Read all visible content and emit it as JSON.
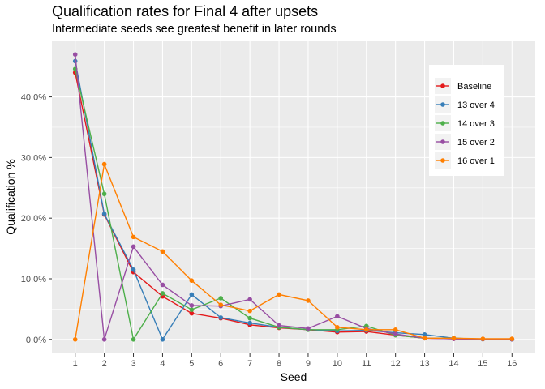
{
  "chart_data": {
    "type": "line",
    "title": "Qualification rates for Final 4 after upsets",
    "subtitle": "Intermediate seeds see greatest benefit in later rounds",
    "xlabel": "Seed",
    "ylabel": "Qualification %",
    "x": [
      1,
      2,
      3,
      4,
      5,
      6,
      7,
      8,
      9,
      10,
      11,
      12,
      13,
      14,
      15,
      16
    ],
    "x_ticks": [
      "1",
      "2",
      "3",
      "4",
      "5",
      "6",
      "7",
      "8",
      "9",
      "10",
      "11",
      "12",
      "13",
      "14",
      "15",
      "16"
    ],
    "y_ticks": [
      "0.0%",
      "10.0%",
      "20.0%",
      "30.0%",
      "40.0%"
    ],
    "y_tick_values": [
      0,
      10,
      20,
      30,
      40
    ],
    "ylim": [
      -2.3,
      49.3
    ],
    "xlim": [
      0.2,
      16.8
    ],
    "grid": true,
    "legend_position": "top-right",
    "series": [
      {
        "name": "Baseline",
        "color": "#e41a1c",
        "values": [
          44.0,
          20.6,
          11.1,
          7.1,
          4.3,
          3.5,
          2.4,
          1.9,
          1.6,
          1.2,
          1.3,
          0.7,
          0.2,
          0.1,
          0.05,
          0.02
        ]
      },
      {
        "name": "13 over 4",
        "color": "#377eb8",
        "values": [
          45.9,
          20.7,
          11.5,
          0.0,
          7.4,
          3.6,
          2.7,
          2.0,
          1.6,
          1.4,
          1.5,
          1.1,
          0.8,
          0.2,
          0.05,
          0.02
        ]
      },
      {
        "name": "14 over 3",
        "color": "#4daf4a",
        "values": [
          44.6,
          24.0,
          0.0,
          7.6,
          4.9,
          6.8,
          3.5,
          2.0,
          1.6,
          1.6,
          2.2,
          0.7,
          0.2,
          0.2,
          0.05,
          0.02
        ]
      },
      {
        "name": "15 over 2",
        "color": "#984ea3",
        "values": [
          47.0,
          0.0,
          15.3,
          9.0,
          5.6,
          5.5,
          6.6,
          2.3,
          1.8,
          3.8,
          1.8,
          0.9,
          0.2,
          0.1,
          0.05,
          0.02
        ]
      },
      {
        "name": "16 over 1",
        "color": "#ff7f00",
        "values": [
          0.0,
          28.9,
          16.9,
          14.5,
          9.7,
          5.7,
          4.7,
          7.4,
          6.4,
          2.0,
          1.6,
          1.6,
          0.2,
          0.2,
          0.1,
          0.1
        ]
      }
    ]
  }
}
